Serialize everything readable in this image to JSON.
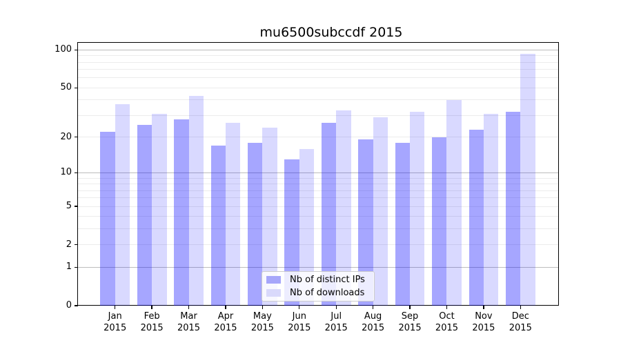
{
  "title": "mu6500subccdf 2015",
  "chart_data": {
    "type": "bar",
    "title": "mu6500subccdf 2015",
    "categories": [
      "Jan",
      "Feb",
      "Mar",
      "Apr",
      "May",
      "Jun",
      "Jul",
      "Aug",
      "Sep",
      "Oct",
      "Nov",
      "Dec"
    ],
    "category_year": "2015",
    "series": [
      {
        "name": "Nb of distinct IPs",
        "values": [
          22,
          25,
          28,
          17,
          18,
          13,
          26,
          19,
          18,
          20,
          23,
          32
        ],
        "color": "rgba(0,0,255,0.35)",
        "legend_color": "#a6a6fa"
      },
      {
        "name": "Nb of downloads",
        "values": [
          37,
          31,
          43,
          26,
          24,
          16,
          33,
          29,
          32,
          40,
          31,
          93
        ],
        "color": "rgba(0,0,255,0.15)",
        "legend_color": "#d9d9fb"
      }
    ],
    "yscale": "log1p",
    "ytick_labels": [
      0,
      1,
      2,
      5,
      10,
      20,
      50,
      100
    ],
    "ytick_major_grid": [
      1,
      10,
      100
    ],
    "ytick_minor_grid": [
      2,
      3,
      4,
      5,
      6,
      7,
      8,
      9,
      20,
      30,
      40,
      50,
      60,
      70,
      80,
      90
    ],
    "ylim": [
      0,
      114
    ],
    "grid": "horizontal",
    "legend_position": "lower center"
  },
  "colors": {
    "grid_major": "#bcbcbc",
    "grid_minor": "#ececec",
    "axis": "#000000",
    "text": "#000000",
    "legend_border": "#cccccc",
    "legend_bg": "rgba(255,255,255,0.8)"
  }
}
